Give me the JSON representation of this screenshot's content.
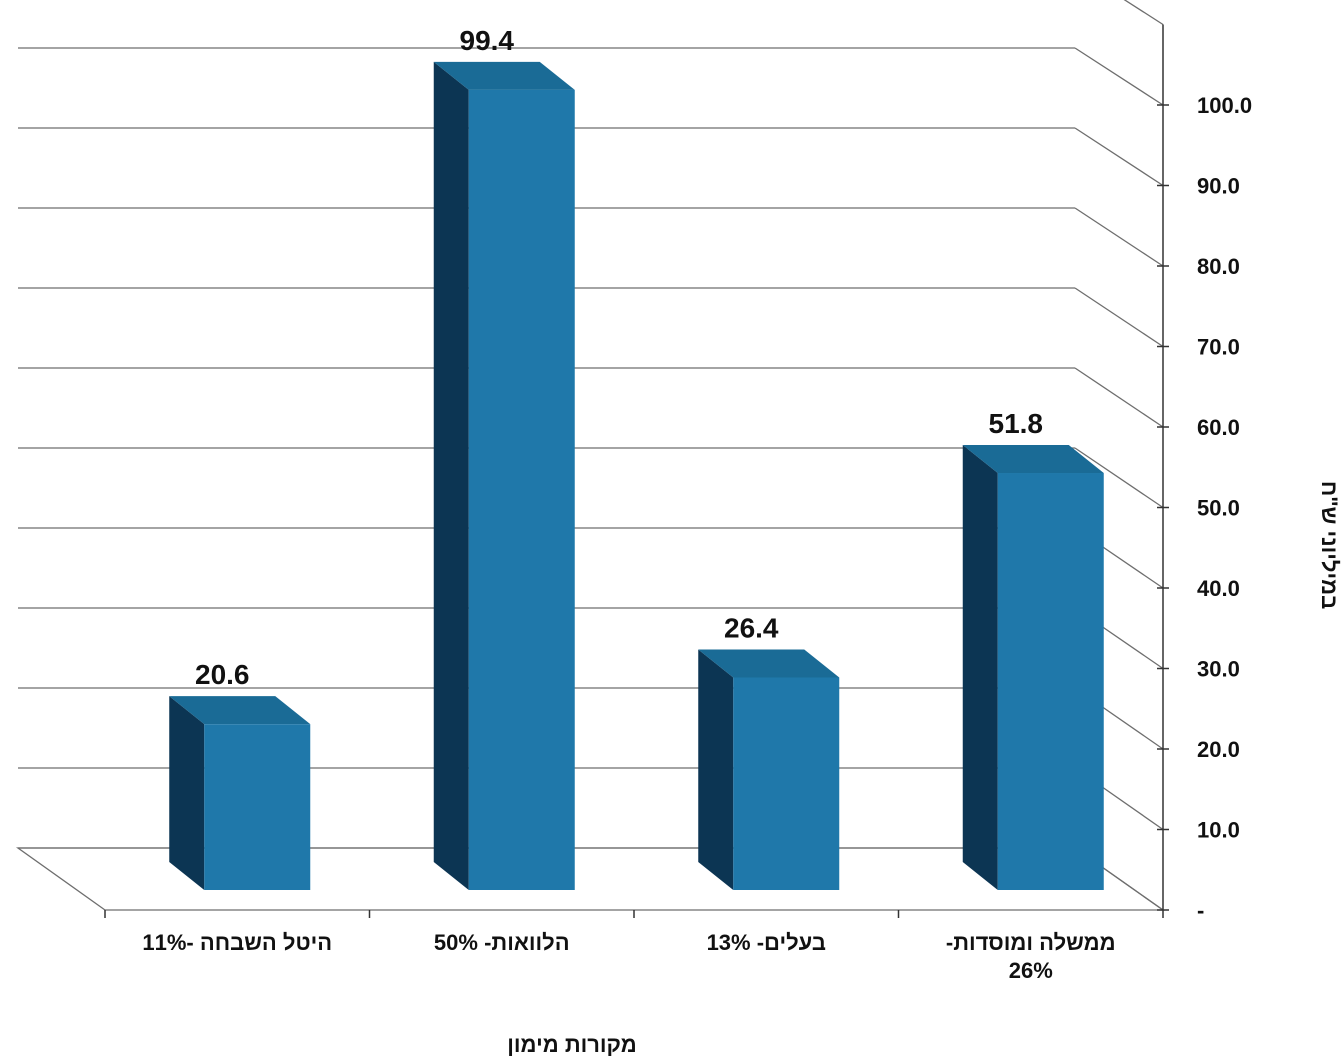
{
  "chart_data": {
    "type": "bar",
    "title": "",
    "categories": [
      [
        "היטל השבחה -11%"
      ],
      [
        "הלוואות- 50%"
      ],
      [
        "בעלים- 13%"
      ],
      [
        "ממשלה ומוסדות-",
        "26%"
      ]
    ],
    "values": [
      20.6,
      99.4,
      26.4,
      51.8
    ],
    "data_labels": [
      "20.6",
      "99.4",
      "26.4",
      "51.8"
    ],
    "xlabel": "מקורות מימון",
    "ylabel": "במיליוני  ש\"ח",
    "ylim": [
      0,
      100
    ],
    "y_ticks": [
      "-",
      "10.0",
      "20.0",
      "30.0",
      "40.0",
      "50.0",
      "60.0",
      "70.0",
      "80.0",
      "90.0",
      "100.0"
    ],
    "y_axis_side": "right",
    "grid": true,
    "three_d": true,
    "colors": {
      "bar_front": "#1f78aa",
      "bar_top": "#1a6b96",
      "bar_side": "#0c3553",
      "grid": "#6e6e6e"
    }
  }
}
